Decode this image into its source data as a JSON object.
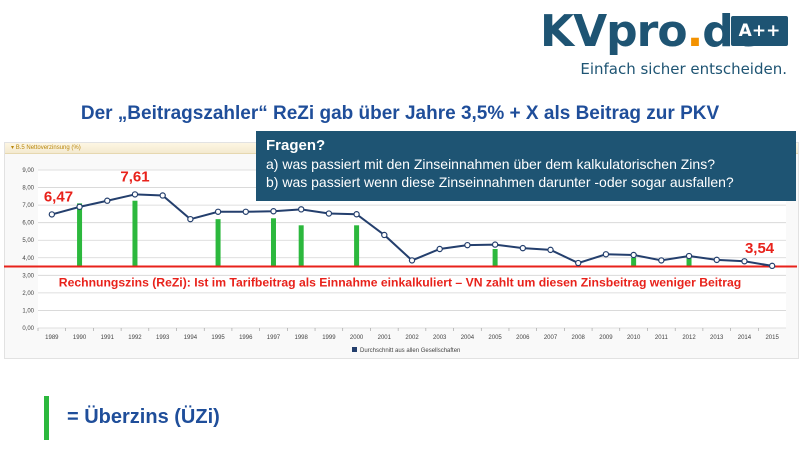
{
  "brand": {
    "logo_main": "KVpro",
    "logo_dot": ".",
    "logo_tld": "de",
    "badge": "A++",
    "tagline": "Einfach sicher entscheiden.",
    "colors": {
      "navy": "#1e5473",
      "orange": "#f39200"
    }
  },
  "slide_title": "Der „Beitragszahler“ ReZi gab über Jahre 3,5% + X als Beitrag zur PKV",
  "panel_header": "B.5 Nettoverzinsung (%)",
  "callout": {
    "title": "Fragen?",
    "q1": "a) was passiert mit den Zinseinnahmen über dem kalkulatorischen Zins?",
    "q2": "b) was passiert wenn diese Zinseinnahmen darunter -oder sogar ausfallen?"
  },
  "legend": {
    "label": "= Überzins (ÜZi)"
  },
  "chart_data": {
    "type": "line",
    "title": "B.5 Nettoverzinsung (%)",
    "categories": [
      "1989",
      "1990",
      "1991",
      "1992",
      "1993",
      "1994",
      "1995",
      "1996",
      "1997",
      "1998",
      "1999",
      "2000",
      "2001",
      "2002",
      "2003",
      "2004",
      "2005",
      "2006",
      "2007",
      "2008",
      "2009",
      "2010",
      "2011",
      "2012",
      "2013",
      "2014",
      "2015"
    ],
    "series": [
      {
        "name": "Durchschnitt aus allen Gesellschaften",
        "values": [
          6.47,
          6.9,
          7.25,
          7.61,
          7.55,
          6.2,
          6.62,
          6.62,
          6.65,
          6.76,
          6.52,
          6.48,
          5.3,
          3.85,
          4.5,
          4.72,
          4.75,
          4.55,
          4.45,
          3.7,
          4.2,
          4.16,
          3.85,
          4.1,
          3.88,
          3.8,
          3.54
        ],
        "color": "#243f6d"
      }
    ],
    "ylim": [
      0,
      9
    ],
    "yticks": [
      "0,00",
      "1,00",
      "2,00",
      "3,00",
      "4,00",
      "5,00",
      "6,00",
      "7,00",
      "8,00",
      "9,00"
    ],
    "xlabel": "",
    "ylabel": "",
    "reference_line": {
      "value": 3.5,
      "label": "Rechnungszins (ReZi): Ist im Tarifbeitrag als Einnahme einkalkuliert – VN zahlt um diesen Zinsbeitrag weniger Beitrag",
      "color": "#e8221b"
    },
    "surplus_bars": {
      "color": "#2cb83d",
      "years": [
        "1990",
        "1992",
        "1995",
        "1997",
        "1998",
        "2000",
        "2005",
        "2010",
        "2012"
      ],
      "tops": [
        7.1,
        7.25,
        6.2,
        6.25,
        5.85,
        5.85,
        4.5,
        4.0,
        4.0
      ]
    },
    "annotations": [
      {
        "year": "1989",
        "text": "6,47"
      },
      {
        "year": "1992",
        "text": "7,61"
      },
      {
        "year": "2015",
        "text": "3,54"
      }
    ],
    "grid": true,
    "legend": "bottom-center"
  }
}
